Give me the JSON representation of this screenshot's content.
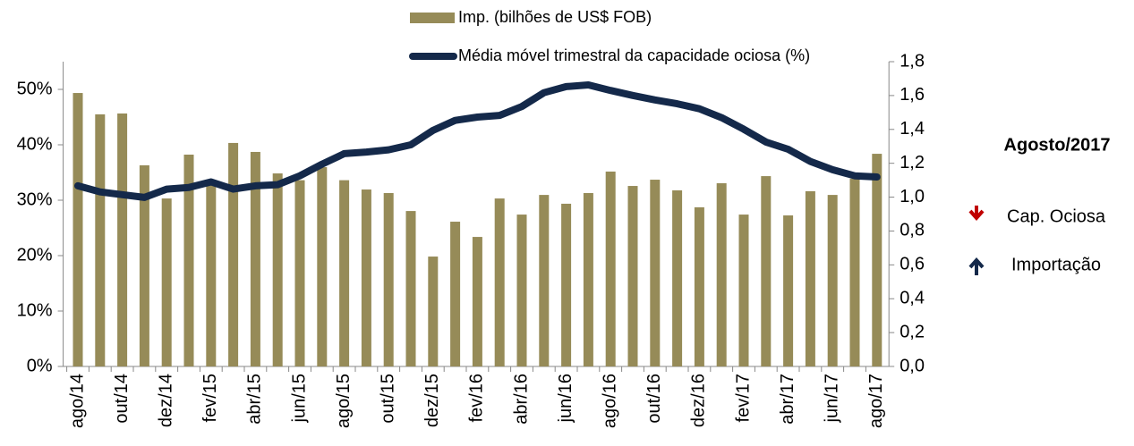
{
  "chart_data": {
    "type": "bar",
    "categories": [
      "ago/14",
      null,
      "out/14",
      null,
      "dez/14",
      null,
      "fev/15",
      null,
      "abr/15",
      null,
      "jun/15",
      null,
      "ago/15",
      null,
      "out/15",
      null,
      "dez/15",
      null,
      "fev/16",
      null,
      "abr/16",
      null,
      "jun/16",
      null,
      "ago/16",
      null,
      "out/16",
      null,
      "dez/16",
      null,
      "fev/17",
      null,
      "abr/17",
      null,
      "jun/17",
      null,
      "ago/17"
    ],
    "series": [
      {
        "name": "Imp. (bilhões de US$ FOB)",
        "type": "bar",
        "axis": "y2",
        "color": "#968b58",
        "values": [
          1.615,
          1.489,
          1.494,
          1.188,
          0.992,
          1.251,
          1.07,
          1.32,
          1.267,
          1.14,
          1.1,
          1.177,
          1.1,
          1.045,
          1.024,
          0.918,
          0.649,
          0.855,
          0.765,
          0.992,
          0.897,
          1.013,
          0.961,
          1.024,
          1.151,
          1.066,
          1.103,
          1.04,
          0.94,
          1.082,
          0.897,
          1.124,
          0.892,
          1.035,
          1.013,
          1.109,
          1.256
        ]
      },
      {
        "name": "Média móvel trimestral da capacidade ociosa (%)",
        "type": "line",
        "axis": "y",
        "color": "#14294a",
        "values": [
          32.6,
          31.5,
          31.0,
          30.5,
          32.0,
          32.3,
          33.3,
          32.0,
          32.6,
          32.8,
          34.4,
          36.5,
          38.4,
          38.7,
          39.1,
          40.0,
          42.6,
          44.4,
          45.0,
          45.3,
          46.9,
          49.4,
          50.5,
          50.8,
          49.8,
          48.9,
          48.1,
          47.4,
          46.5,
          44.9,
          42.8,
          40.5,
          39.2,
          37.0,
          35.5,
          34.4,
          34.2
        ]
      }
    ],
    "ylim": [
      0,
      55
    ],
    "yticks": [
      {
        "value": 0,
        "label": "0%"
      },
      {
        "value": 10,
        "label": "10%"
      },
      {
        "value": 20,
        "label": "20%"
      },
      {
        "value": 30,
        "label": "30%"
      },
      {
        "value": 40,
        "label": "40%"
      },
      {
        "value": 50,
        "label": "50%"
      }
    ],
    "y2lim": [
      0,
      1.8
    ],
    "y2ticks": [
      {
        "value": 0,
        "label": "0,0"
      },
      {
        "value": 0.2,
        "label": "0,2"
      },
      {
        "value": 0.4,
        "label": "0,4"
      },
      {
        "value": 0.6,
        "label": "0,6"
      },
      {
        "value": 0.8,
        "label": "0,8"
      },
      {
        "value": 1.0,
        "label": "1,0"
      },
      {
        "value": 1.2,
        "label": "1,2"
      },
      {
        "value": 1.4,
        "label": "1,4"
      },
      {
        "value": 1.6,
        "label": "1,6"
      },
      {
        "value": 1.8,
        "label": "1,8"
      }
    ],
    "grid": false,
    "side_panel": {
      "title": "Agosto/2017",
      "items": [
        "Cap. Ociosa",
        "Importação"
      ]
    }
  }
}
